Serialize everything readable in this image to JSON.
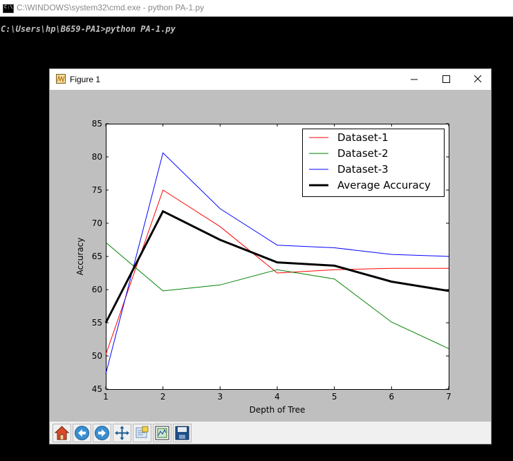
{
  "cmd": {
    "title": "C:\\WINDOWS\\system32\\cmd.exe - python  PA-1.py",
    "prompt": "C:\\Users\\hp\\B659-PA1>python PA-1.py"
  },
  "figure": {
    "title": "Figure 1",
    "toolbar": [
      {
        "name": "home-button",
        "icon": "home-icon"
      },
      {
        "name": "back-button",
        "icon": "back-arrow-icon"
      },
      {
        "name": "forward-button",
        "icon": "forward-arrow-icon"
      },
      {
        "name": "pan-button",
        "icon": "pan-icon"
      },
      {
        "name": "zoom-button",
        "icon": "zoom-rect-icon"
      },
      {
        "name": "subplots-button",
        "icon": "subplots-icon"
      },
      {
        "name": "save-button",
        "icon": "save-icon"
      }
    ]
  },
  "chart_data": {
    "type": "line",
    "title": "",
    "xlabel": "Depth of Tree",
    "ylabel": "Accuracy",
    "xlim": [
      1,
      7
    ],
    "ylim": [
      45,
      85
    ],
    "xticks": [
      1,
      2,
      3,
      4,
      5,
      6,
      7
    ],
    "yticks": [
      45,
      50,
      55,
      60,
      65,
      70,
      75,
      80,
      85
    ],
    "grid": false,
    "legend_position": "top-right",
    "x": [
      1,
      2,
      3,
      4,
      5,
      6,
      7
    ],
    "series": [
      {
        "name": "Dataset-1",
        "color": "#ff0000",
        "width": 1,
        "values": [
          50.2,
          75.0,
          69.5,
          62.5,
          63.0,
          63.2,
          63.2
        ]
      },
      {
        "name": "Dataset-2",
        "color": "#008000",
        "width": 1,
        "values": [
          67.1,
          59.8,
          60.7,
          63.0,
          61.6,
          55.1,
          51.1
        ]
      },
      {
        "name": "Dataset-3",
        "color": "#0000ff",
        "width": 1,
        "values": [
          47.3,
          80.6,
          72.2,
          66.7,
          66.3,
          65.3,
          65.0
        ]
      },
      {
        "name": "Average Accuracy",
        "color": "#000000",
        "width": 3,
        "values": [
          55.0,
          71.8,
          67.5,
          64.1,
          63.6,
          61.2,
          59.8
        ]
      }
    ]
  }
}
